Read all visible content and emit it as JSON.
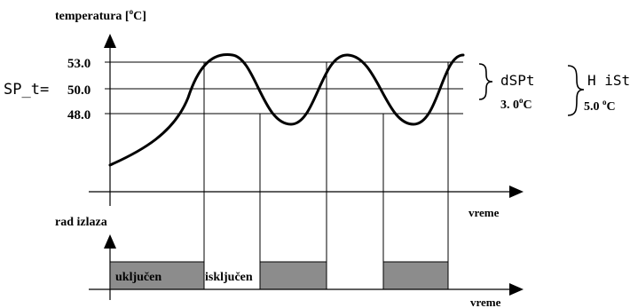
{
  "diagram": {
    "y_title": "temperatura [",
    "y_title_unit_sup": "o",
    "y_title_unit": "C]",
    "levels": {
      "top": "53.0",
      "mid_prefix": "SP_t=",
      "mid": "50.0",
      "low": "48.0"
    },
    "annotations": {
      "dspt_label": "dSPt",
      "dspt_value": "3. 0",
      "dspt_sup": "o",
      "dspt_unit": "C",
      "hist_label": "H iSt",
      "hist_value": "5.0 ",
      "hist_sup": "o",
      "hist_unit": "C"
    },
    "time_label_top": "vreme",
    "time_label_bottom": "vreme",
    "output_label": "rad izlaza",
    "output_states": {
      "on": "uključen",
      "off": "isključen"
    },
    "colors": {
      "line": "#000000",
      "on_fill": "#8c8c8c",
      "background": "#ffffff"
    }
  }
}
